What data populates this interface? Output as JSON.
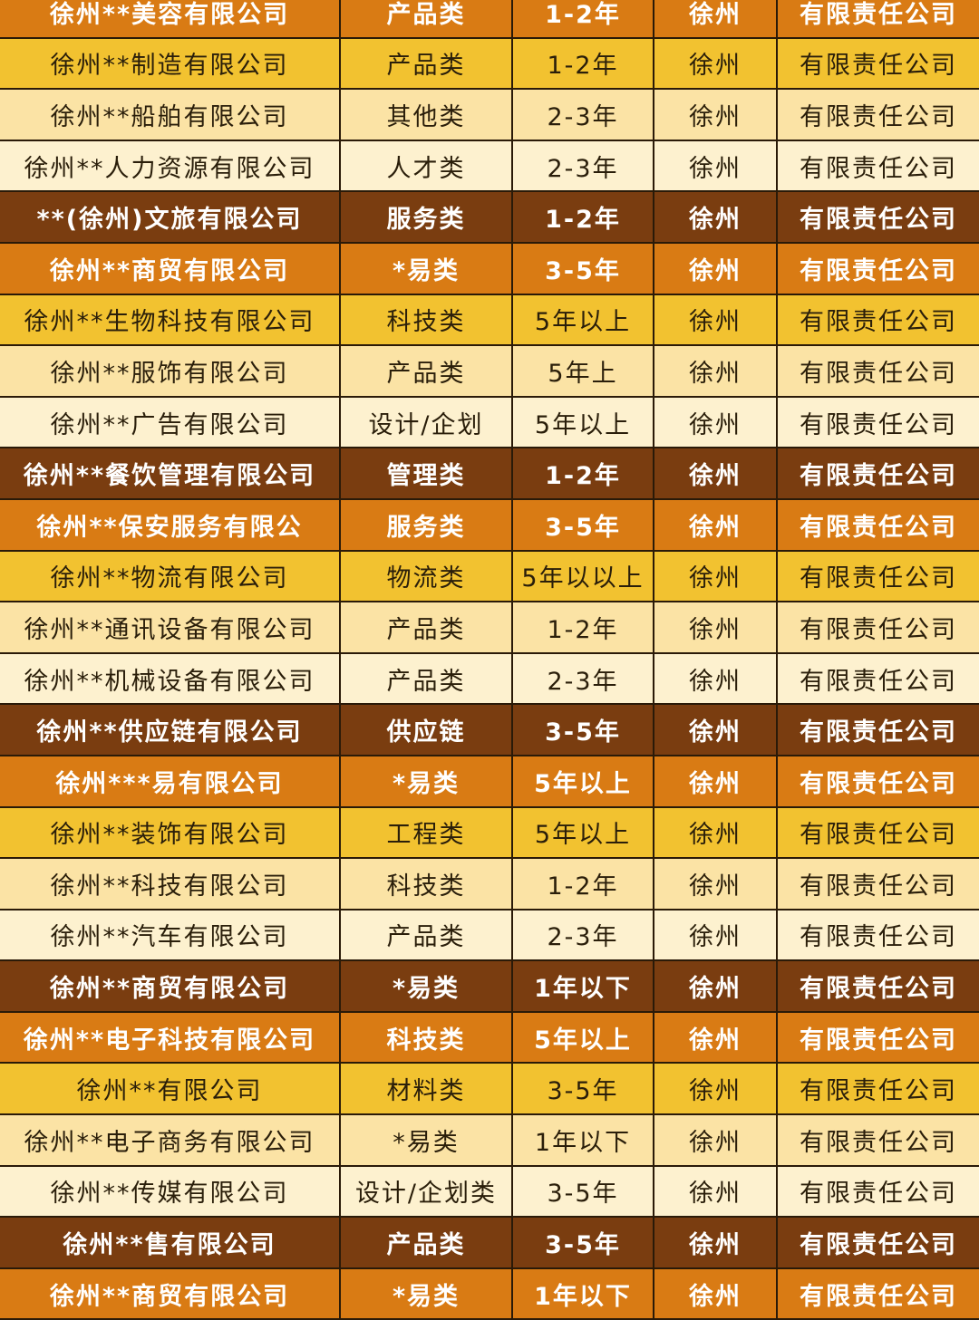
{
  "colors": {
    "orange": "#d97b14",
    "yellow": "#f2c230",
    "light": "#fbe3a5",
    "lighter": "#fdf1cf",
    "dark": "#7a3d10"
  },
  "rows": [
    {
      "style": "orange",
      "cells": [
        "徐州**美容有限公司",
        "产品类",
        "1-2年",
        "徐州",
        "有限责任公司"
      ]
    },
    {
      "style": "yellow",
      "cells": [
        "徐州**制造有限公司",
        "产品类",
        "1-2年",
        "徐州",
        "有限责任公司"
      ]
    },
    {
      "style": "light",
      "cells": [
        "徐州**船舶有限公司",
        "其他类",
        "2-3年",
        "徐州",
        "有限责任公司"
      ]
    },
    {
      "style": "lighter",
      "cells": [
        "徐州**人力资源有限公司",
        "人才类",
        "2-3年",
        "徐州",
        "有限责任公司"
      ]
    },
    {
      "style": "dark",
      "cells": [
        "**(徐州)文旅有限公司",
        "服务类",
        "1-2年",
        "徐州",
        "有限责任公司"
      ]
    },
    {
      "style": "orange",
      "cells": [
        "徐州**商贸有限公司",
        "*易类",
        "3-5年",
        "徐州",
        "有限责任公司"
      ]
    },
    {
      "style": "yellow",
      "cells": [
        "徐州**生物科技有限公司",
        "科技类",
        "5年以上",
        "徐州",
        "有限责任公司"
      ]
    },
    {
      "style": "light",
      "cells": [
        "徐州**服饰有限公司",
        "产品类",
        "5年上",
        "徐州",
        "有限责任公司"
      ]
    },
    {
      "style": "lighter",
      "cells": [
        "徐州**广告有限公司",
        "设计/企划",
        "5年以上",
        "徐州",
        "有限责任公司"
      ]
    },
    {
      "style": "dark",
      "cells": [
        "徐州**餐饮管理有限公司",
        "管理类",
        "1-2年",
        "徐州",
        "有限责任公司"
      ]
    },
    {
      "style": "orange",
      "cells": [
        "徐州**保安服务有限公",
        "服务类",
        "3-5年",
        "徐州",
        "有限责任公司"
      ]
    },
    {
      "style": "yellow",
      "cells": [
        "徐州**物流有限公司",
        "物流类",
        "5年以以上",
        "徐州",
        "有限责任公司"
      ]
    },
    {
      "style": "light",
      "cells": [
        "徐州**通讯设备有限公司",
        "产品类",
        "1-2年",
        "徐州",
        "有限责任公司"
      ]
    },
    {
      "style": "lighter",
      "cells": [
        "徐州**机械设备有限公司",
        "产品类",
        "2-3年",
        "徐州",
        "有限责任公司"
      ]
    },
    {
      "style": "dark",
      "cells": [
        "徐州**供应链有限公司",
        "供应链",
        "3-5年",
        "徐州",
        "有限责任公司"
      ]
    },
    {
      "style": "orange",
      "cells": [
        "徐州***易有限公司",
        "*易类",
        "5年以上",
        "徐州",
        "有限责任公司"
      ]
    },
    {
      "style": "yellow",
      "cells": [
        "徐州**装饰有限公司",
        "工程类",
        "5年以上",
        "徐州",
        "有限责任公司"
      ]
    },
    {
      "style": "light",
      "cells": [
        "徐州**科技有限公司",
        "科技类",
        "1-2年",
        "徐州",
        "有限责任公司"
      ]
    },
    {
      "style": "lighter",
      "cells": [
        "徐州**汽车有限公司",
        "产品类",
        "2-3年",
        "徐州",
        "有限责任公司"
      ]
    },
    {
      "style": "dark",
      "cells": [
        "徐州**商贸有限公司",
        "*易类",
        "1年以下",
        "徐州",
        "有限责任公司"
      ]
    },
    {
      "style": "orange",
      "cells": [
        "徐州**电子科技有限公司",
        "科技类",
        "5年以上",
        "徐州",
        "有限责任公司"
      ]
    },
    {
      "style": "yellow",
      "cells": [
        "徐州**有限公司",
        "材料类",
        "3-5年",
        "徐州",
        "有限责任公司"
      ]
    },
    {
      "style": "light",
      "cells": [
        "徐州**电子商务有限公司",
        "*易类",
        "1年以下",
        "徐州",
        "有限责任公司"
      ]
    },
    {
      "style": "lighter",
      "cells": [
        "徐州**传媒有限公司",
        "设计/企划类",
        "3-5年",
        "徐州",
        "有限责任公司"
      ]
    },
    {
      "style": "dark",
      "cells": [
        "徐州**售有限公司",
        "产品类",
        "3-5年",
        "徐州",
        "有限责任公司"
      ]
    },
    {
      "style": "orange",
      "cells": [
        "徐州**商贸有限公司",
        "*易类",
        "1年以下",
        "徐州",
        "有限责任公司"
      ]
    }
  ]
}
